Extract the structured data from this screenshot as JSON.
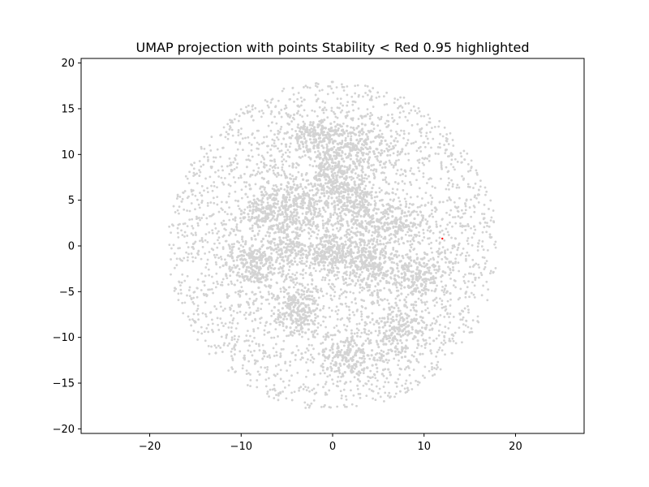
{
  "chart_data": {
    "type": "scatter",
    "title": "UMAP projection with points Stability < Red 0.95 highlighted",
    "xlabel": "",
    "ylabel": "",
    "xlim": [
      -27.5,
      27.5
    ],
    "ylim": [
      -20.5,
      20.5
    ],
    "xticks": [
      -20,
      -10,
      0,
      10,
      20
    ],
    "yticks": [
      -20,
      -15,
      -10,
      -5,
      0,
      5,
      10,
      15,
      20
    ],
    "xtick_labels": [
      "−20",
      "−10",
      "0",
      "10",
      "20"
    ],
    "ytick_labels": [
      "−20",
      "−15",
      "−10",
      "−5",
      "0",
      "5",
      "10",
      "15",
      "20"
    ],
    "grid": false,
    "legend": false,
    "colors": {
      "background_points": "#d3d3d3",
      "highlighted_points": "#ff0000",
      "axes": "#000000"
    },
    "series": [
      {
        "role": "background",
        "approx_point_count": 6000,
        "spread_radius": 18,
        "dense_clusters": [
          {
            "x": -3,
            "y": 4.5
          },
          {
            "x": 2.5,
            "y": 5
          },
          {
            "x": -5,
            "y": 0
          },
          {
            "x": 0,
            "y": -1
          },
          {
            "x": 4,
            "y": -2
          },
          {
            "x": -4,
            "y": -7
          },
          {
            "x": 0,
            "y": 8
          },
          {
            "x": 2,
            "y": -12
          },
          {
            "x": -2,
            "y": 12
          },
          {
            "x": 6,
            "y": 2.5
          },
          {
            "x": 9,
            "y": -3
          },
          {
            "x": 7,
            "y": -9
          },
          {
            "x": -7,
            "y": 4
          },
          {
            "x": -9,
            "y": -2
          },
          {
            "x": 3,
            "y": 11
          }
        ]
      },
      {
        "role": "highlighted",
        "points": [
          {
            "x": 12.0,
            "y": 0.8
          }
        ]
      }
    ]
  }
}
